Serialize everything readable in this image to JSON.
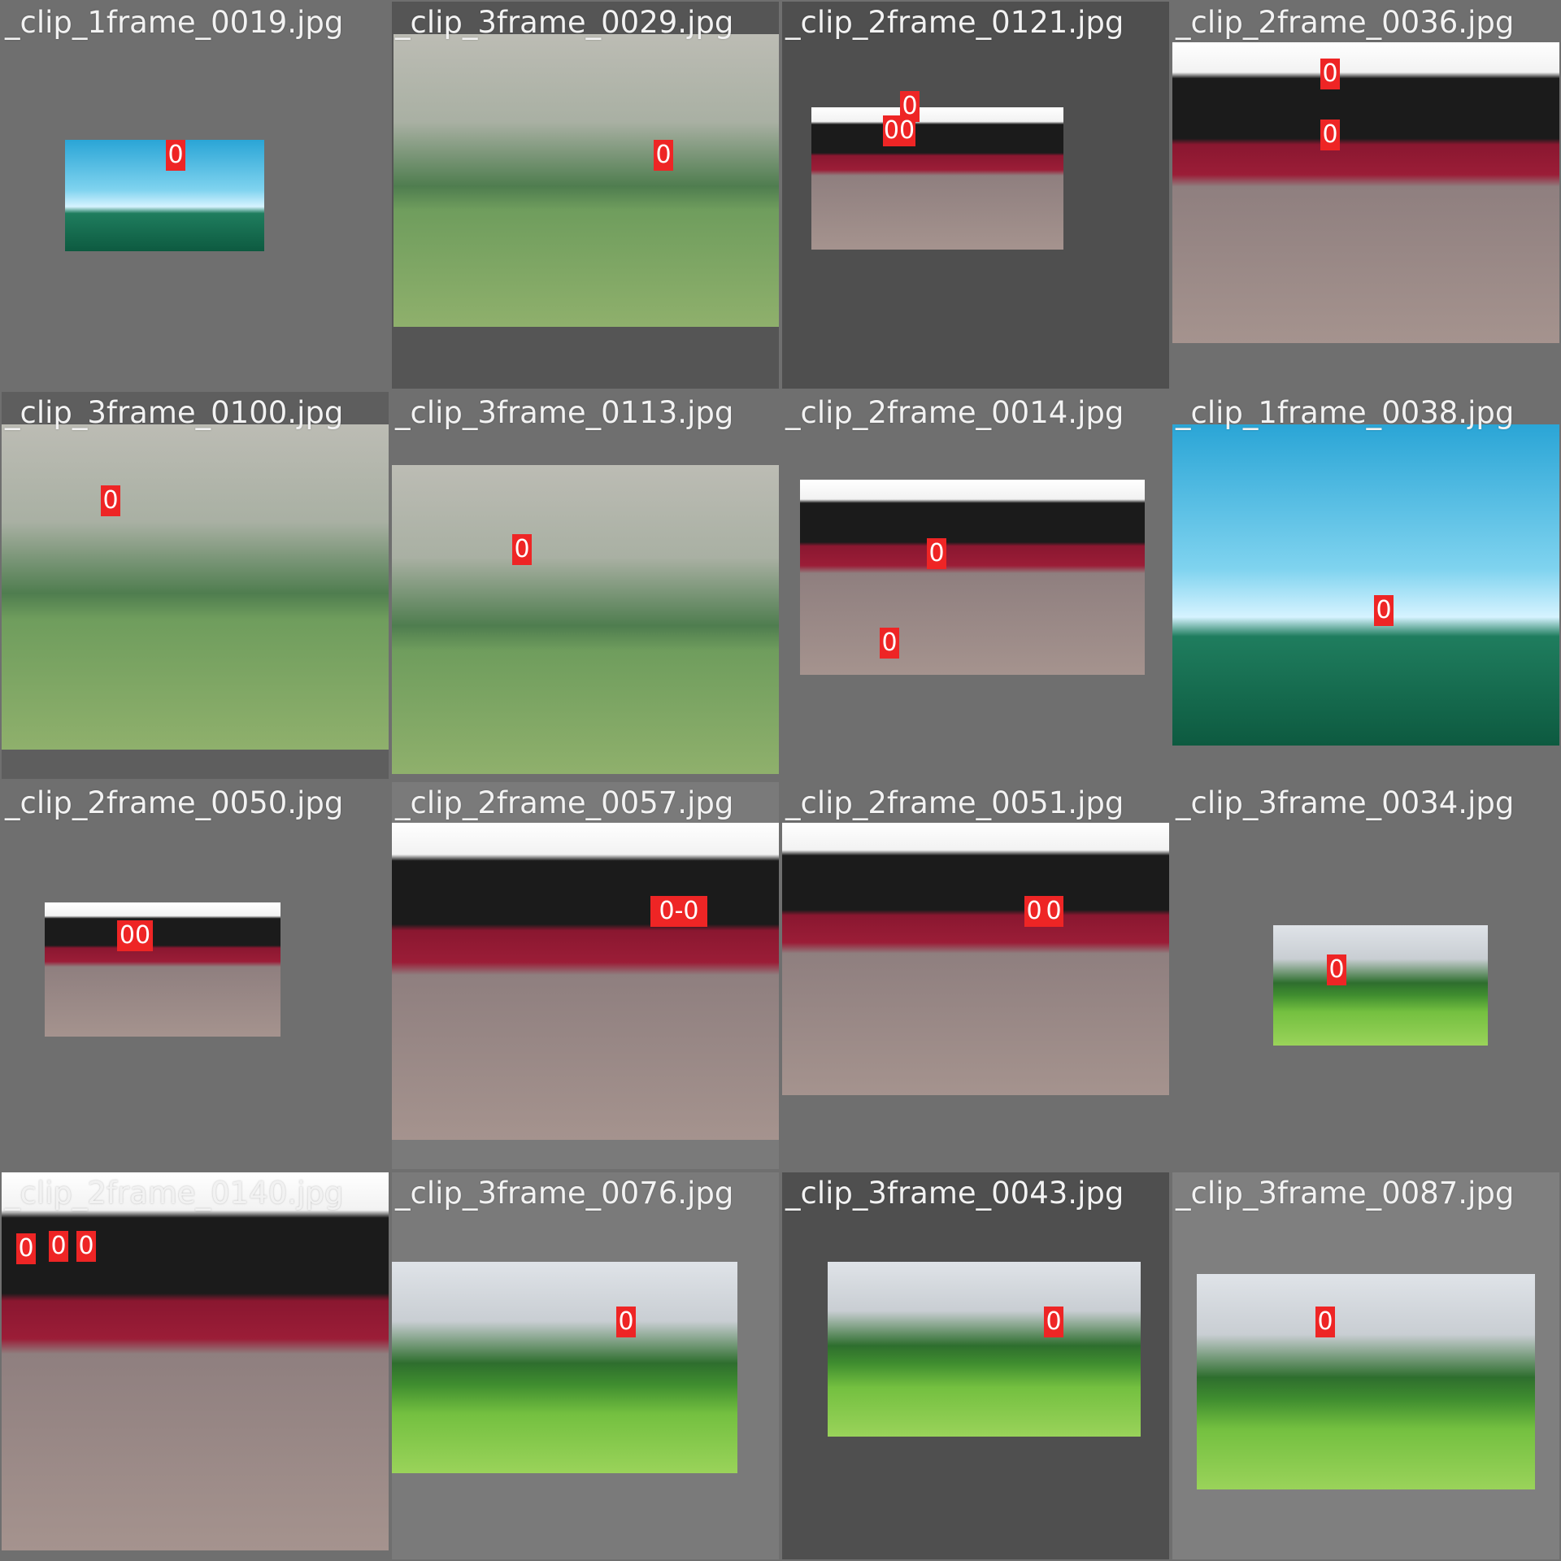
{
  "mosaic": {
    "tiles": [
      {
        "label": "_clip_1frame_0019.jpg",
        "scene": "sky",
        "tile_bg": "#6f6f6f",
        "detections": [
          "0"
        ]
      },
      {
        "label": "_clip_3frame_0029.jpg",
        "scene": "field",
        "tile_bg": "#555555",
        "detections": [
          "0"
        ]
      },
      {
        "label": "_clip_2frame_0121.jpg",
        "scene": "room",
        "tile_bg": "#4f4f4f",
        "detections": [
          "0",
          "00"
        ]
      },
      {
        "label": "_clip_2frame_0036.jpg",
        "scene": "room",
        "tile_bg": "#6f6f6f",
        "detections": [
          "0",
          "0"
        ]
      },
      {
        "label": "_clip_3frame_0100.jpg",
        "scene": "field",
        "tile_bg": "#5e5e5e",
        "detections": [
          "0"
        ]
      },
      {
        "label": "_clip_3frame_0113.jpg",
        "scene": "field",
        "tile_bg": "#6f6f6f",
        "detections": [
          "0"
        ]
      },
      {
        "label": "_clip_2frame_0014.jpg",
        "scene": "room",
        "tile_bg": "#6f6f6f",
        "detections": [
          "0",
          "0"
        ]
      },
      {
        "label": "_clip_1frame_0038.jpg",
        "scene": "sky",
        "tile_bg": "#6f6f6f",
        "detections": [
          "0"
        ]
      },
      {
        "label": "_clip_2frame_0050.jpg",
        "scene": "room",
        "tile_bg": "#6f6f6f",
        "detections": [
          "00"
        ]
      },
      {
        "label": "_clip_2frame_0057.jpg",
        "scene": "room",
        "tile_bg": "#7a7a7a",
        "detections": [
          "0-0"
        ]
      },
      {
        "label": "_clip_2frame_0051.jpg",
        "scene": "room",
        "tile_bg": "#6f6f6f",
        "detections": [
          "0",
          "0"
        ]
      },
      {
        "label": "_clip_3frame_0034.jpg",
        "scene": "fieldb",
        "tile_bg": "#6f6f6f",
        "detections": [
          "0"
        ]
      },
      {
        "label": "_clip_2frame_0140.jpg",
        "scene": "room",
        "tile_bg": "#6f6f6f",
        "detections": [
          "0",
          "0",
          "0"
        ]
      },
      {
        "label": "_clip_3frame_0076.jpg",
        "scene": "fieldb",
        "tile_bg": "#7a7a7a",
        "detections": [
          "0"
        ]
      },
      {
        "label": "_clip_3frame_0043.jpg",
        "scene": "fieldb",
        "tile_bg": "#4f4f4f",
        "detections": [
          "0"
        ]
      },
      {
        "label": "_clip_3frame_0087.jpg",
        "scene": "fieldb",
        "tile_bg": "#7f7f7f",
        "detections": [
          "0"
        ]
      }
    ]
  },
  "colors": {
    "detection_box": "#ee2525",
    "detection_text": "#ffffff",
    "underline": "#e0b400"
  }
}
